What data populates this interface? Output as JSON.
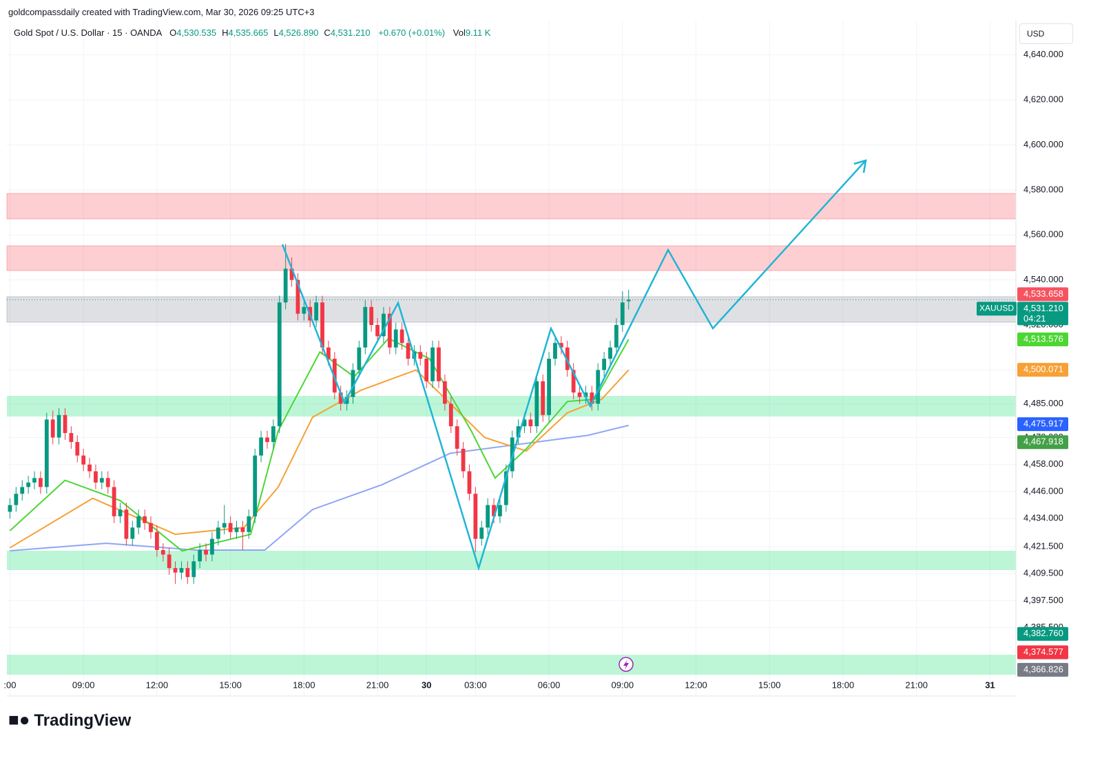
{
  "chart_data": {
    "type": "candlestick",
    "attribution": "goldcompassdaily created with TradingView.com, Mar 30, 2026 09:25 UTC+3",
    "title": "Gold Spot / U.S. Dollar · 15 · OANDA",
    "ohlc_legend": [
      {
        "key": "O",
        "label": "4,530.535"
      },
      {
        "key": "H",
        "label": "4,535.665"
      },
      {
        "key": "L",
        "label": "4,526.890"
      },
      {
        "key": "C",
        "label": "4,531.210"
      }
    ],
    "change": "+0.670 (+0.01%)",
    "volume": {
      "key": "Vol",
      "label": "9.11 K"
    },
    "currency": "USD",
    "brand": "TradingView",
    "up_color": "#089981",
    "down_color": "#f23645",
    "ohlc": [
      [
        4437,
        4443,
        4434,
        4440
      ],
      [
        4440,
        4448,
        4437,
        4445
      ],
      [
        4445,
        4451,
        4442,
        4448
      ],
      [
        4448,
        4453,
        4445,
        4450
      ],
      [
        4450,
        4455,
        4447,
        4452
      ],
      [
        4452,
        4455,
        4445,
        4448
      ],
      [
        4448,
        4481,
        4445,
        4478
      ],
      [
        4478,
        4482,
        4467,
        4470
      ],
      [
        4470,
        4483,
        4467,
        4480
      ],
      [
        4480,
        4483,
        4469,
        4472
      ],
      [
        4472,
        4475,
        4465,
        4468
      ],
      [
        4468,
        4471,
        4459,
        4462
      ],
      [
        4462,
        4465,
        4455,
        4458
      ],
      [
        4458,
        4461,
        4452,
        4455
      ],
      [
        4455,
        4458,
        4447,
        4450
      ],
      [
        4450,
        4455,
        4447,
        4452
      ],
      [
        4452,
        4455,
        4445,
        4448
      ],
      [
        4448,
        4451,
        4432,
        4435
      ],
      [
        4435,
        4441,
        4432,
        4438
      ],
      [
        4438,
        4441,
        4422,
        4425
      ],
      [
        4425,
        4433,
        4422,
        4430
      ],
      [
        4430,
        4438,
        4427,
        4435
      ],
      [
        4435,
        4438,
        4429,
        4432
      ],
      [
        4432,
        4435,
        4425,
        4428
      ],
      [
        4428,
        4431,
        4417,
        4420
      ],
      [
        4420,
        4423,
        4415,
        4418
      ],
      [
        4418,
        4421,
        4409,
        4412
      ],
      [
        4412,
        4415,
        4405,
        4410
      ],
      [
        4410,
        4415,
        4407,
        4412
      ],
      [
        4412,
        4415,
        4405,
        4408
      ],
      [
        4408,
        4418,
        4405,
        4415
      ],
      [
        4415,
        4423,
        4412,
        4420
      ],
      [
        4420,
        4423,
        4415,
        4418
      ],
      [
        4418,
        4428,
        4415,
        4425
      ],
      [
        4425,
        4433,
        4422,
        4430
      ],
      [
        4430,
        4440,
        4427,
        4432
      ],
      [
        4432,
        4435,
        4425,
        4428
      ],
      [
        4428,
        4433,
        4425,
        4430
      ],
      [
        4430,
        4433,
        4420,
        4428
      ],
      [
        4428,
        4438,
        4425,
        4435
      ],
      [
        4435,
        4465,
        4432,
        4462
      ],
      [
        4462,
        4473,
        4459,
        4470
      ],
      [
        4470,
        4473,
        4465,
        4468
      ],
      [
        4468,
        4478,
        4465,
        4475
      ],
      [
        4475,
        4533,
        4472,
        4530
      ],
      [
        4530,
        4556,
        4527,
        4545
      ],
      [
        4545,
        4550,
        4537,
        4540
      ],
      [
        4540,
        4543,
        4522,
        4525
      ],
      [
        4525,
        4531,
        4522,
        4528
      ],
      [
        4528,
        4531,
        4519,
        4522
      ],
      [
        4522,
        4533,
        4519,
        4530
      ],
      [
        4530,
        4533,
        4507,
        4510
      ],
      [
        4510,
        4513,
        4502,
        4505
      ],
      [
        4505,
        4508,
        4487,
        4490
      ],
      [
        4490,
        4493,
        4482,
        4485
      ],
      [
        4485,
        4491,
        4482,
        4488
      ],
      [
        4488,
        4503,
        4485,
        4500
      ],
      [
        4500,
        4513,
        4497,
        4510
      ],
      [
        4510,
        4531,
        4507,
        4528
      ],
      [
        4528,
        4531,
        4517,
        4520
      ],
      [
        4520,
        4523,
        4512,
        4515
      ],
      [
        4515,
        4528,
        4512,
        4525
      ],
      [
        4525,
        4528,
        4507,
        4510
      ],
      [
        4510,
        4521,
        4507,
        4518
      ],
      [
        4518,
        4521,
        4509,
        4512
      ],
      [
        4512,
        4515,
        4502,
        4505
      ],
      [
        4505,
        4511,
        4502,
        4508
      ],
      [
        4508,
        4511,
        4502,
        4505
      ],
      [
        4505,
        4508,
        4492,
        4495
      ],
      [
        4495,
        4513,
        4492,
        4510
      ],
      [
        4510,
        4513,
        4492,
        4495
      ],
      [
        4495,
        4498,
        4482,
        4485
      ],
      [
        4485,
        4488,
        4472,
        4475
      ],
      [
        4475,
        4478,
        4462,
        4465
      ],
      [
        4465,
        4468,
        4452,
        4455
      ],
      [
        4455,
        4458,
        4442,
        4445
      ],
      [
        4445,
        4448,
        4419,
        4425
      ],
      [
        4425,
        4433,
        4422,
        4430
      ],
      [
        4430,
        4443,
        4427,
        4440
      ],
      [
        4440,
        4443,
        4432,
        4435
      ],
      [
        4435,
        4443,
        4432,
        4440
      ],
      [
        4440,
        4458,
        4437,
        4455
      ],
      [
        4455,
        4473,
        4452,
        4470
      ],
      [
        4470,
        4478,
        4467,
        4475
      ],
      [
        4475,
        4481,
        4472,
        4478
      ],
      [
        4478,
        4481,
        4472,
        4475
      ],
      [
        4475,
        4498,
        4472,
        4495
      ],
      [
        4495,
        4498,
        4477,
        4480
      ],
      [
        4480,
        4508,
        4477,
        4505
      ],
      [
        4505,
        4515,
        4502,
        4512
      ],
      [
        4512,
        4515,
        4507,
        4510
      ],
      [
        4510,
        4513,
        4497,
        4500
      ],
      [
        4500,
        4503,
        4487,
        4490
      ],
      [
        4490,
        4493,
        4485,
        4488
      ],
      [
        4488,
        4493,
        4485,
        4490
      ],
      [
        4490,
        4493,
        4482,
        4485
      ],
      [
        4485,
        4503,
        4482,
        4500
      ],
      [
        4500,
        4508,
        4497,
        4505
      ],
      [
        4505,
        4513,
        4502,
        4510
      ],
      [
        4510,
        4523,
        4507,
        4520
      ],
      [
        4520,
        4535,
        4517,
        4530
      ],
      [
        4530.535,
        4535.665,
        4526.89,
        4531.21
      ]
    ],
    "lines": [
      {
        "color": "#8fa5f5",
        "x": [
          0,
          15.7,
          30.3,
          41.6,
          49.4,
          60.7,
          71.9,
          83.1,
          94.4,
          101
        ],
        "values": [
          4419.7,
          4423,
          4420,
          4420,
          4438,
          4449,
          4463,
          4467,
          4471,
          4475.4
        ]
      },
      {
        "color": "#f7a035",
        "x": [
          0,
          13.5,
          27,
          38.2,
          43.8,
          49.4,
          57.3,
          66.3,
          77.5,
          84.3,
          91,
          96.6,
          101
        ],
        "values": [
          4421,
          4443,
          4427,
          4430,
          4448,
          4479,
          4491,
          4500,
          4470,
          4464,
          4481,
          4487,
          4500
        ]
      },
      {
        "color": "#4cd633",
        "x": [
          0,
          9,
          18,
          28.1,
          39.3,
          43.8,
          50.6,
          56.2,
          61.8,
          68.5,
          75.3,
          79.2,
          84.3,
          91,
          95.5,
          101
        ],
        "values": [
          4428.6,
          4451,
          4442,
          4419.6,
          4427,
          4473,
          4508,
          4497,
          4514,
          4505,
          4473,
          4452,
          4465,
          4486,
          4487,
          4513.6
        ]
      }
    ],
    "xlim": [
      -0.5,
      164
    ],
    "xticks": [
      {
        "value": 0,
        "label": ":00"
      },
      {
        "value": 12,
        "label": "09:00"
      },
      {
        "value": 24,
        "label": "12:00"
      },
      {
        "value": 36,
        "label": "15:00"
      },
      {
        "value": 48,
        "label": "18:00"
      },
      {
        "value": 60,
        "label": "21:00"
      },
      {
        "value": 68,
        "label": "30"
      },
      {
        "value": 76,
        "label": "03:00"
      },
      {
        "value": 88,
        "label": "06:00"
      },
      {
        "value": 100,
        "label": "09:00"
      },
      {
        "value": 112,
        "label": "12:00"
      },
      {
        "value": 124,
        "label": "15:00"
      },
      {
        "value": 136,
        "label": "18:00"
      },
      {
        "value": 148,
        "label": "21:00"
      },
      {
        "value": 160,
        "label": "31"
      }
    ],
    "ylim": [
      4363.1,
      4655.2
    ],
    "yticks": [
      {
        "value": 4640,
        "label": "4,640.000"
      },
      {
        "value": 4620,
        "label": "4,620.000"
      },
      {
        "value": 4600,
        "label": "4,600.000"
      },
      {
        "value": 4580,
        "label": "4,580.000"
      },
      {
        "value": 4560,
        "label": "4,560.000"
      },
      {
        "value": 4540,
        "label": "4,540.000"
      },
      {
        "value": 4520,
        "label": "4,520.000"
      },
      {
        "value": 4500,
        "label": "4,500.000"
      },
      {
        "value": 4485,
        "label": "4,485.000"
      },
      {
        "value": 4470,
        "label": "4,470.000"
      },
      {
        "value": 4458,
        "label": "4,458.000"
      },
      {
        "value": 4446,
        "label": "4,446.000"
      },
      {
        "value": 4434,
        "label": "4,434.000"
      },
      {
        "value": 4421.5,
        "label": "4,421.500"
      },
      {
        "value": 4409.5,
        "label": "4,409.500"
      },
      {
        "value": 4397.5,
        "label": "4,397.500"
      },
      {
        "value": 4385.5,
        "label": "4,385.500"
      }
    ],
    "grid": true,
    "last_price": {
      "symbol": "XAUUSD",
      "value": 4531.21,
      "label": "4,531.210",
      "countdown": "04:21",
      "color": "#089981"
    },
    "price_labels": [
      {
        "value": 4533.658,
        "label": "4,533.658",
        "color": "#f7525f"
      },
      {
        "value": 4513.576,
        "label": "4,513.576",
        "color": "#4cd633"
      },
      {
        "value": 4500.071,
        "label": "4,500.071",
        "color": "#f7a035"
      },
      {
        "value": 4475.917,
        "label": "4,475.917",
        "color": "#2962ff"
      },
      {
        "value": 4467.918,
        "label": "4,467.918",
        "color": "#43a047"
      },
      {
        "value": 4382.76,
        "label": "4,382.760",
        "color": "#089981"
      },
      {
        "value": 4374.577,
        "label": "4,374.577",
        "color": "#f23645"
      },
      {
        "value": 4366.826,
        "label": "4,366.826",
        "color": "#787b86"
      }
    ]
  }
}
